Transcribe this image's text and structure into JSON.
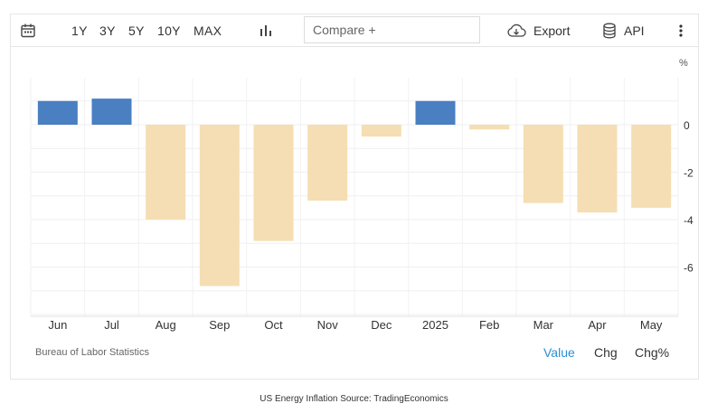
{
  "toolbar": {
    "ranges": [
      "1Y",
      "3Y",
      "5Y",
      "10Y",
      "MAX"
    ],
    "compare_placeholder": "Compare +",
    "export_label": "Export",
    "api_label": "API"
  },
  "footer": {
    "source": "Bureau of Labor Statistics",
    "modes": [
      "Value",
      "Chg",
      "Chg%"
    ],
    "active_mode": "Value"
  },
  "caption": "US Energy Inflation Source: TradingEconomics",
  "colors": {
    "positive": "#4a7fc1",
    "negative": "#f5deb3",
    "active_mode": "#2a8fd6"
  },
  "chart_data": {
    "type": "bar",
    "categories": [
      "Jun",
      "Jul",
      "Aug",
      "Sep",
      "Oct",
      "Nov",
      "Dec",
      "2025",
      "Feb",
      "Mar",
      "Apr",
      "May"
    ],
    "values": [
      1.0,
      1.1,
      -4.0,
      -6.8,
      -4.9,
      -3.2,
      -0.5,
      1.0,
      -0.2,
      -3.3,
      -3.7,
      -3.5
    ],
    "unit": "%",
    "yticks": [
      0,
      -2,
      -4,
      -6
    ],
    "ylim": [
      -8,
      2
    ],
    "grid": true,
    "y_axis_side": "right"
  }
}
